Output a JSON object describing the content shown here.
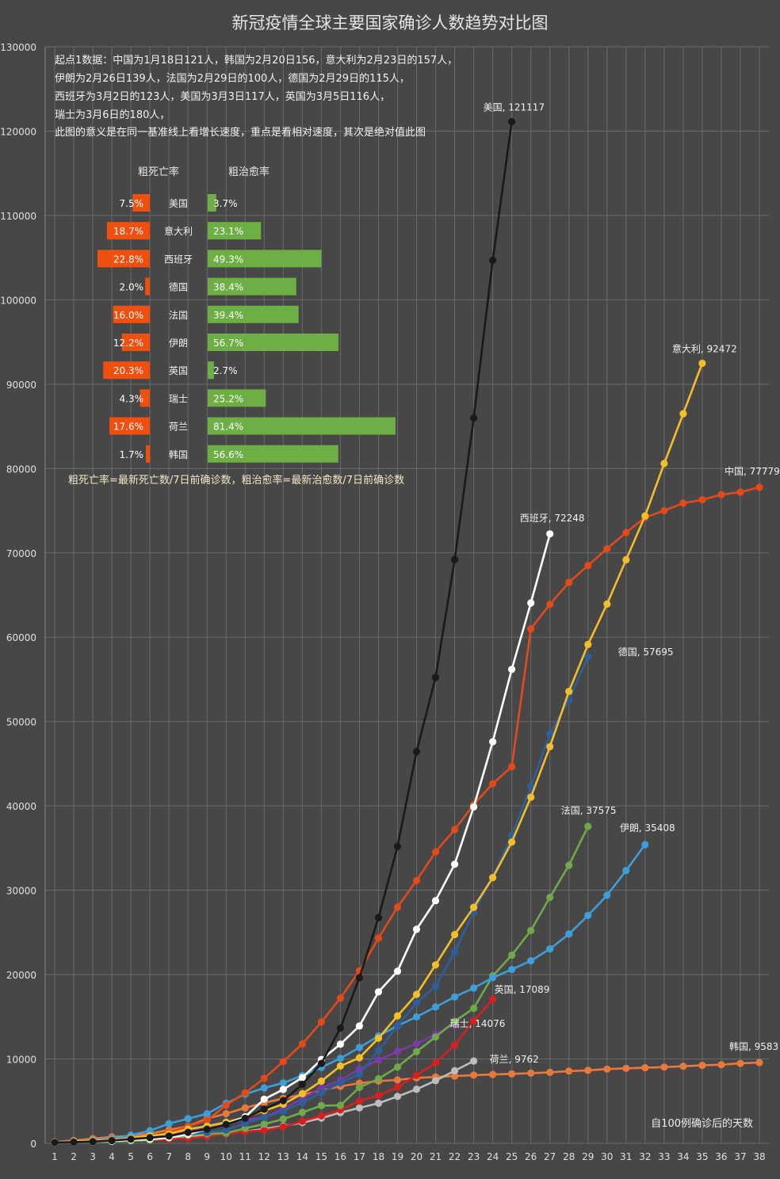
{
  "chart_data": {
    "type": "line",
    "title": "新冠疫情全球主要国家确诊人数趋势对比图",
    "xlabel": "自100例确诊后的天数",
    "ylabel": "",
    "ylim": [
      0,
      130000
    ],
    "xlim": [
      1,
      38
    ],
    "yticks": [
      0,
      10000,
      20000,
      30000,
      40000,
      50000,
      60000,
      70000,
      80000,
      90000,
      100000,
      110000,
      120000,
      130000
    ],
    "grid": true,
    "notes": [
      "起点1数据：中国为1月18日121人，韩国为2月20日156，意大利为2月23日的157人，",
      "伊朗为2月26日139人，法国为2月29日的100人，德国为2月29日的115人，",
      "西班牙为3月2日的123人，美国为3月3日117人，英国为3月5日116人，",
      "瑞士为3月6日的180人，",
      "此图的意义是在同一基准线上看增长速度，重点是看相对速度，其次是绝对值此图"
    ],
    "series": [
      {
        "name": "中国",
        "color": "#E24A1B",
        "end_label": "中国, 77779",
        "marker": true,
        "values": [
          121,
          198,
          291,
          440,
          571,
          830,
          1287,
          1975,
          2744,
          4515,
          5974,
          7711,
          9692,
          11791,
          14380,
          17205,
          20438,
          24324,
          28018,
          31161,
          34546,
          37198,
          40171,
          42638,
          44653,
          61000,
          63900,
          66500,
          68500,
          70500,
          72400,
          74200,
          75000,
          75900,
          76300,
          76900,
          77200,
          77779
        ]
      },
      {
        "name": "韩国",
        "color": "#E8783B",
        "end_label": "韩国, 9583",
        "marker": true,
        "values": [
          156,
          346,
          556,
          763,
          893,
          1146,
          1595,
          2022,
          2931,
          3526,
          4212,
          4812,
          5328,
          5766,
          6284,
          6767,
          7134,
          7382,
          7513,
          7755,
          7869,
          7979,
          8086,
          8162,
          8236,
          8320,
          8413,
          8565,
          8652,
          8799,
          8897,
          8961,
          9037,
          9137,
          9241,
          9332,
          9478,
          9583
        ]
      },
      {
        "name": "意大利",
        "color": "#F2BE2A",
        "end_label": "意大利, 92472",
        "marker": true,
        "values": [
          157,
          229,
          322,
          400,
          650,
          888,
          1128,
          1694,
          2036,
          2502,
          3089,
          3858,
          4636,
          5883,
          7375,
          9172,
          10149,
          12462,
          15113,
          17660,
          21157,
          24747,
          27980,
          31506,
          35713,
          41035,
          47021,
          53578,
          59138,
          63927,
          69176,
          74386,
          80589,
          86498,
          92472
        ]
      },
      {
        "name": "伊朗",
        "color": "#3E9ED8",
        "end_label": "伊朗, 35408",
        "marker": true,
        "values": [
          139,
          245,
          388,
          593,
          978,
          1501,
          2336,
          2922,
          3513,
          4747,
          5823,
          6566,
          7161,
          8042,
          9000,
          10075,
          11364,
          12729,
          13938,
          14991,
          16169,
          17361,
          18407,
          19644,
          20610,
          21638,
          23049,
          24811,
          27017,
          29406,
          32332,
          35408
        ]
      },
      {
        "name": "法国",
        "color": "#6FA94A",
        "end_label": "法国, 37575",
        "marker": true,
        "values": [
          100,
          130,
          191,
          204,
          285,
          377,
          653,
          949,
          1126,
          1209,
          1784,
          2281,
          2876,
          3661,
          4469,
          4499,
          6633,
          7652,
          9043,
          10871,
          12612,
          14459,
          16018,
          19856,
          22304,
          25233,
          29155,
          32964,
          37575
        ]
      },
      {
        "name": "德国",
        "color": "#2E5E9C",
        "end_label": "德国, 57695",
        "marker": true,
        "values": [
          115,
          150,
          188,
          240,
          400,
          639,
          795,
          1112,
          1296,
          1567,
          2369,
          3062,
          3795,
          4838,
          6012,
          7156,
          8198,
          10999,
          13957,
          16662,
          18610,
          22672,
          27436,
          31554,
          36508,
          42288,
          48582,
          52547,
          57695
        ]
      },
      {
        "name": "西班牙",
        "color": "#FFFFFF",
        "end_label": "西班牙, 72248",
        "marker": true,
        "values": [
          123,
          165,
          222,
          259,
          400,
          500,
          673,
          1073,
          1695,
          2277,
          3146,
          5232,
          6391,
          7798,
          9942,
          11748,
          13910,
          17963,
          20410,
          25374,
          28768,
          33089,
          39885,
          47610,
          56188,
          64059,
          72248
        ]
      },
      {
        "name": "美国",
        "color": "#1A1A1A",
        "end_label": "美国, 121117",
        "marker": true,
        "values": [
          117,
          150,
          220,
          330,
          500,
          670,
          866,
          1301,
          1683,
          2248,
          2974,
          4051,
          5061,
          6997,
          9464,
          13663,
          19630,
          26747,
          35206,
          46442,
          55231,
          69194,
          85991,
          104686,
          121117
        ]
      },
      {
        "name": "英国",
        "color": "#D42020",
        "end_label": "英国, 17089",
        "marker": true,
        "values": [
          116,
          164,
          209,
          278,
          321,
          383,
          460,
          590,
          798,
          1140,
          1391,
          1543,
          1950,
          2626,
          3269,
          3983,
          5018,
          5683,
          6650,
          8077,
          9529,
          11658,
          14543,
          17089
        ]
      },
      {
        "name": "瑞士",
        "color": "#7A3AA8",
        "end_label": "瑞士, 14076",
        "marker": true,
        "values": [
          180,
          268,
          337,
          374,
          491,
          652,
          1139,
          1359,
          2200,
          2353,
          2742,
          3115,
          4075,
          5294,
          6575,
          7474,
          8795,
          9877,
          10897,
          11811,
          12928,
          14076
        ]
      },
      {
        "name": "荷兰",
        "color": "#BDBDBD",
        "end_label": "荷兰, 9762",
        "marker": true,
        "values": [
          128,
          188,
          265,
          321,
          382,
          503,
          614,
          804,
          959,
          1135,
          1413,
          1705,
          2051,
          2460,
          2994,
          3631,
          4204,
          4749,
          5560,
          6412,
          7431,
          8603,
          9762
        ]
      }
    ],
    "inset_table": {
      "left_header": "粗死亡率",
      "right_header": "粗治愈率",
      "rows": [
        {
          "country": "美国",
          "death_label": "7.5%",
          "death": 7.5,
          "cure_label": "3.7%",
          "cure": 3.7
        },
        {
          "country": "意大利",
          "death_label": "18.7%",
          "death": 18.7,
          "cure_label": "23.1%",
          "cure": 23.1
        },
        {
          "country": "西班牙",
          "death_label": "22.8%",
          "death": 22.8,
          "cure_label": "49.3%",
          "cure": 49.3
        },
        {
          "country": "德国",
          "death_label": "2.0%",
          "death": 2.0,
          "cure_label": "38.4%",
          "cure": 38.4
        },
        {
          "country": "法国",
          "death_label": "16.0%",
          "death": 16.0,
          "cure_label": "39.4%",
          "cure": 39.4
        },
        {
          "country": "伊朗",
          "death_label": "12.2%",
          "death": 12.2,
          "cure_label": "56.7%",
          "cure": 56.7
        },
        {
          "country": "英国",
          "death_label": "20.3%",
          "death": 20.3,
          "cure_label": "2.7%",
          "cure": 2.7
        },
        {
          "country": "瑞士",
          "death_label": "4.3%",
          "death": 4.3,
          "cure_label": "25.2%",
          "cure": 25.2
        },
        {
          "country": "荷兰",
          "death_label": "17.6%",
          "death": 17.6,
          "cure_label": "81.4%",
          "cure": 81.4
        },
        {
          "country": "韩国",
          "death_label": "1.7%",
          "death": 1.7,
          "cure_label": "56.6%",
          "cure": 56.6
        }
      ],
      "footnote": "粗死亡率=最新死亡数/7日前确诊数，粗治愈率=最新治愈数/7日前确诊数",
      "death_color": "#F0500F",
      "cure_color": "#6DAE45"
    }
  }
}
